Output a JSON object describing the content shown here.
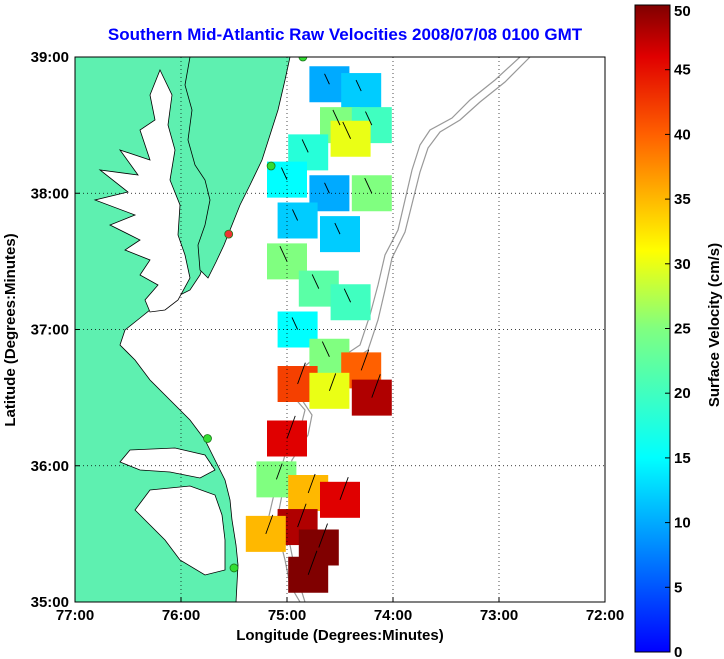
{
  "chart_data": {
    "type": "heatmap",
    "title": "Southern Mid-Atlantic Raw Velocities 2008/07/08 0100 GMT",
    "xlabel": "Longitude (Degrees:Minutes)",
    "ylabel": "Latitude (Degrees:Minutes)",
    "xlim": [
      -77,
      -72
    ],
    "ylim": [
      35,
      39
    ],
    "x_ticks": [
      {
        "value": -77,
        "label": "77:00"
      },
      {
        "value": -76,
        "label": "76:00"
      },
      {
        "value": -75,
        "label": "75:00"
      },
      {
        "value": -74,
        "label": "74:00"
      },
      {
        "value": -73,
        "label": "73:00"
      },
      {
        "value": -72,
        "label": "72:00"
      }
    ],
    "y_ticks": [
      {
        "value": 35,
        "label": "35:00"
      },
      {
        "value": 36,
        "label": "36:00"
      },
      {
        "value": 37,
        "label": "37:00"
      },
      {
        "value": 38,
        "label": "38:00"
      },
      {
        "value": 39,
        "label": "39:00"
      }
    ],
    "grid": true,
    "colorbar": {
      "label": "Surface Velocity (cm/s)",
      "range": [
        0,
        50
      ],
      "ticks": [
        0,
        5,
        10,
        15,
        20,
        25,
        30,
        35,
        40,
        45,
        50
      ],
      "colormap": "jet"
    },
    "velocity_field": [
      {
        "lon": -74.6,
        "lat": 38.8,
        "speed": 10
      },
      {
        "lon": -74.3,
        "lat": 38.75,
        "speed": 12
      },
      {
        "lon": -74.5,
        "lat": 38.5,
        "speed": 25
      },
      {
        "lon": -74.2,
        "lat": 38.5,
        "speed": 20
      },
      {
        "lon": -74.4,
        "lat": 38.4,
        "speed": 30
      },
      {
        "lon": -74.8,
        "lat": 38.3,
        "speed": 18
      },
      {
        "lon": -75.0,
        "lat": 38.1,
        "speed": 15
      },
      {
        "lon": -74.6,
        "lat": 38.0,
        "speed": 10
      },
      {
        "lon": -74.2,
        "lat": 38.0,
        "speed": 25
      },
      {
        "lon": -74.9,
        "lat": 37.8,
        "speed": 12
      },
      {
        "lon": -74.5,
        "lat": 37.7,
        "speed": 12
      },
      {
        "lon": -75.0,
        "lat": 37.5,
        "speed": 25
      },
      {
        "lon": -74.7,
        "lat": 37.3,
        "speed": 22
      },
      {
        "lon": -74.4,
        "lat": 37.2,
        "speed": 20
      },
      {
        "lon": -74.9,
        "lat": 37.0,
        "speed": 15
      },
      {
        "lon": -74.6,
        "lat": 36.8,
        "speed": 25
      },
      {
        "lon": -74.3,
        "lat": 36.7,
        "speed": 40
      },
      {
        "lon": -74.9,
        "lat": 36.6,
        "speed": 42
      },
      {
        "lon": -74.6,
        "lat": 36.55,
        "speed": 30
      },
      {
        "lon": -74.2,
        "lat": 36.5,
        "speed": 48
      },
      {
        "lon": -75.0,
        "lat": 36.2,
        "speed": 46
      },
      {
        "lon": -75.1,
        "lat": 35.9,
        "speed": 25
      },
      {
        "lon": -74.8,
        "lat": 35.8,
        "speed": 35
      },
      {
        "lon": -74.5,
        "lat": 35.75,
        "speed": 46
      },
      {
        "lon": -74.9,
        "lat": 35.55,
        "speed": 48
      },
      {
        "lon": -74.7,
        "lat": 35.4,
        "speed": 50
      },
      {
        "lon": -75.2,
        "lat": 35.5,
        "speed": 35
      },
      {
        "lon": -74.8,
        "lat": 35.2,
        "speed": 50
      }
    ],
    "stations": [
      {
        "lon": -74.85,
        "lat": 39.0,
        "status": "active"
      },
      {
        "lon": -75.15,
        "lat": 38.2,
        "status": "active"
      },
      {
        "lon": -75.55,
        "lat": 37.7,
        "status": "inactive"
      },
      {
        "lon": -75.75,
        "lat": 36.2,
        "status": "active"
      },
      {
        "lon": -75.5,
        "lat": 35.25,
        "status": "active"
      }
    ],
    "colors": {
      "land": "#5ef0b0",
      "coast": "#000000",
      "bathymetry": "#999999",
      "station_active": "#33dd33",
      "station_inactive": "#ee3333"
    }
  }
}
